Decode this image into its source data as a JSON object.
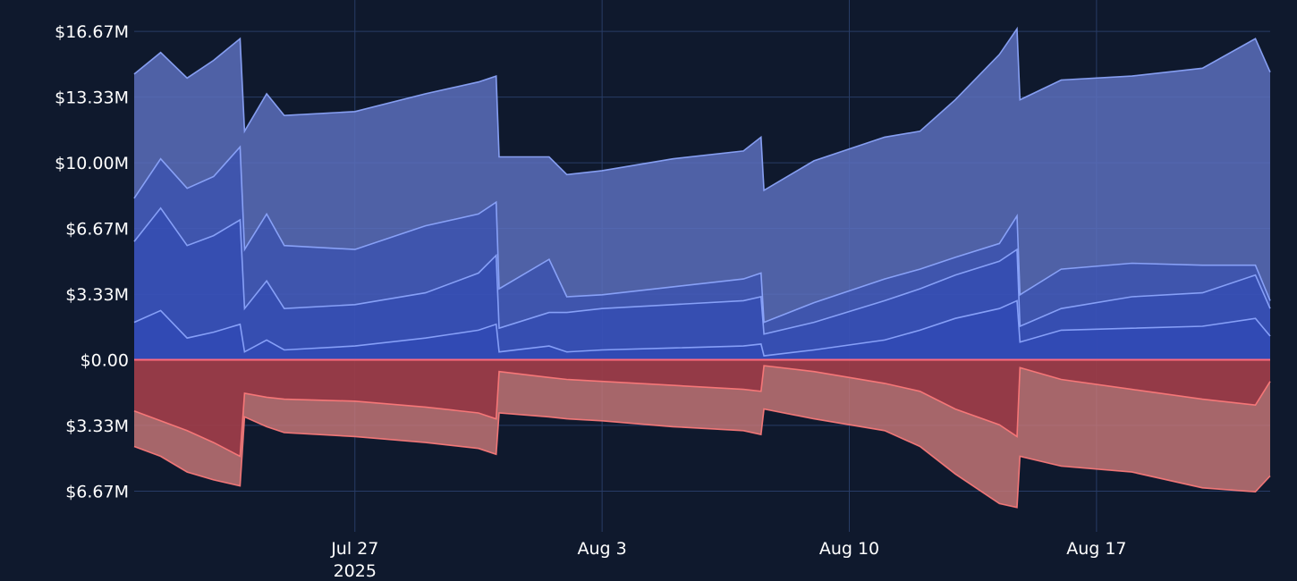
{
  "chart_data": {
    "type": "area",
    "title": "",
    "xlabel": "",
    "ylabel": "",
    "x_range": [
      "2025-07-20T18:00",
      "2025-08-21T22:00"
    ],
    "ylim": [
      -7.6,
      16.9
    ],
    "grid": true,
    "legend": "none",
    "y_ticks": [
      {
        "value": 16.67,
        "label": "$16.67M"
      },
      {
        "value": 13.33,
        "label": "$13.33M"
      },
      {
        "value": 10.0,
        "label": "$10.00M"
      },
      {
        "value": 6.67,
        "label": "$6.67M"
      },
      {
        "value": 3.33,
        "label": "$3.33M"
      },
      {
        "value": 0,
        "label": "$0.00"
      },
      {
        "value": -3.33,
        "label": "$3.33M"
      },
      {
        "value": -6.67,
        "label": "$6.67M"
      }
    ],
    "x_ticks": [
      {
        "date": "2025-07-27",
        "label": "Jul 27",
        "sublabel": "2025"
      },
      {
        "date": "2025-08-03",
        "label": "Aug 3",
        "sublabel": ""
      },
      {
        "date": "2025-08-10",
        "label": "Aug 10",
        "sublabel": ""
      },
      {
        "date": "2025-08-17",
        "label": "Aug 17",
        "sublabel": ""
      }
    ],
    "colors": {
      "positive_line": "#8fa8ff",
      "positive_fill": "#5a6ebc",
      "positive_inner": "#2a46b8",
      "negative_line": "#ff7b7b",
      "negative_fill": "#c87878",
      "negative_inner": "#8e2a3a",
      "zero_line": "#ff6b7d"
    },
    "series": [
      {
        "side": "positive",
        "points": [
          [
            "2025-07-20T18:00",
            14.5
          ],
          [
            "2025-07-21T12:00",
            15.6
          ],
          [
            "2025-07-22T06:00",
            14.3
          ],
          [
            "2025-07-23T00:00",
            15.2
          ],
          [
            "2025-07-23T18:00",
            16.3
          ],
          [
            "2025-07-23T21:00",
            11.6
          ],
          [
            "2025-07-24T12:00",
            13.5
          ],
          [
            "2025-07-25T00:00",
            12.4
          ],
          [
            "2025-07-27T00:00",
            12.6
          ],
          [
            "2025-07-29T00:00",
            13.5
          ],
          [
            "2025-07-30T12:00",
            14.1
          ],
          [
            "2025-07-31T00:00",
            14.4
          ],
          [
            "2025-07-31T02:00",
            10.3
          ],
          [
            "2025-08-01T12:00",
            10.3
          ],
          [
            "2025-08-02T00:00",
            9.4
          ],
          [
            "2025-08-03T00:00",
            9.6
          ],
          [
            "2025-08-05T00:00",
            10.2
          ],
          [
            "2025-08-07T00:00",
            10.6
          ],
          [
            "2025-08-07T12:00",
            11.3
          ],
          [
            "2025-08-07T14:00",
            8.6
          ],
          [
            "2025-08-09T00:00",
            10.1
          ],
          [
            "2025-08-11T00:00",
            11.3
          ],
          [
            "2025-08-12T00:00",
            11.6
          ],
          [
            "2025-08-13T00:00",
            13.2
          ],
          [
            "2025-08-14T06:00",
            15.5
          ],
          [
            "2025-08-14T18:00",
            16.8
          ],
          [
            "2025-08-14T20:00",
            13.2
          ],
          [
            "2025-08-16T00:00",
            14.2
          ],
          [
            "2025-08-18T00:00",
            14.4
          ],
          [
            "2025-08-20T00:00",
            14.8
          ],
          [
            "2025-08-21T12:00",
            16.3
          ],
          [
            "2025-08-21T22:00",
            14.6
          ]
        ]
      },
      {
        "side": "positive",
        "points": [
          [
            "2025-07-20T18:00",
            8.2
          ],
          [
            "2025-07-21T12:00",
            10.2
          ],
          [
            "2025-07-22T06:00",
            8.7
          ],
          [
            "2025-07-23T00:00",
            9.3
          ],
          [
            "2025-07-23T18:00",
            10.8
          ],
          [
            "2025-07-23T21:00",
            5.6
          ],
          [
            "2025-07-24T12:00",
            7.4
          ],
          [
            "2025-07-25T00:00",
            5.8
          ],
          [
            "2025-07-27T00:00",
            5.6
          ],
          [
            "2025-07-29T00:00",
            6.8
          ],
          [
            "2025-07-30T12:00",
            7.4
          ],
          [
            "2025-07-31T00:00",
            8.0
          ],
          [
            "2025-07-31T02:00",
            3.6
          ],
          [
            "2025-08-01T12:00",
            5.1
          ],
          [
            "2025-08-02T00:00",
            3.2
          ],
          [
            "2025-08-03T00:00",
            3.3
          ],
          [
            "2025-08-05T00:00",
            3.7
          ],
          [
            "2025-08-07T00:00",
            4.1
          ],
          [
            "2025-08-07T12:00",
            4.4
          ],
          [
            "2025-08-07T14:00",
            1.9
          ],
          [
            "2025-08-09T00:00",
            2.9
          ],
          [
            "2025-08-11T00:00",
            4.1
          ],
          [
            "2025-08-12T00:00",
            4.6
          ],
          [
            "2025-08-13T00:00",
            5.2
          ],
          [
            "2025-08-14T06:00",
            5.9
          ],
          [
            "2025-08-14T18:00",
            7.3
          ],
          [
            "2025-08-14T20:00",
            3.3
          ],
          [
            "2025-08-16T00:00",
            4.6
          ],
          [
            "2025-08-18T00:00",
            4.9
          ],
          [
            "2025-08-20T00:00",
            4.8
          ],
          [
            "2025-08-21T12:00",
            4.8
          ],
          [
            "2025-08-21T22:00",
            3.0
          ]
        ]
      },
      {
        "side": "positive",
        "points": [
          [
            "2025-07-20T18:00",
            6.0
          ],
          [
            "2025-07-21T12:00",
            7.7
          ],
          [
            "2025-07-22T06:00",
            5.8
          ],
          [
            "2025-07-23T00:00",
            6.3
          ],
          [
            "2025-07-23T18:00",
            7.1
          ],
          [
            "2025-07-23T21:00",
            2.6
          ],
          [
            "2025-07-24T12:00",
            4.0
          ],
          [
            "2025-07-25T00:00",
            2.6
          ],
          [
            "2025-07-27T00:00",
            2.8
          ],
          [
            "2025-07-29T00:00",
            3.4
          ],
          [
            "2025-07-30T12:00",
            4.4
          ],
          [
            "2025-07-31T00:00",
            5.3
          ],
          [
            "2025-07-31T02:00",
            1.6
          ],
          [
            "2025-08-01T12:00",
            2.4
          ],
          [
            "2025-08-02T00:00",
            2.4
          ],
          [
            "2025-08-03T00:00",
            2.6
          ],
          [
            "2025-08-05T00:00",
            2.8
          ],
          [
            "2025-08-07T00:00",
            3.0
          ],
          [
            "2025-08-07T12:00",
            3.2
          ],
          [
            "2025-08-07T14:00",
            1.3
          ],
          [
            "2025-08-09T00:00",
            1.9
          ],
          [
            "2025-08-11T00:00",
            3.0
          ],
          [
            "2025-08-12T00:00",
            3.6
          ],
          [
            "2025-08-13T00:00",
            4.3
          ],
          [
            "2025-08-14T06:00",
            5.0
          ],
          [
            "2025-08-14T18:00",
            5.6
          ],
          [
            "2025-08-14T20:00",
            1.7
          ],
          [
            "2025-08-16T00:00",
            2.6
          ],
          [
            "2025-08-18T00:00",
            3.2
          ],
          [
            "2025-08-20T00:00",
            3.4
          ],
          [
            "2025-08-21T12:00",
            4.3
          ],
          [
            "2025-08-21T22:00",
            2.6
          ]
        ]
      },
      {
        "side": "positive",
        "points": [
          [
            "2025-07-20T18:00",
            1.9
          ],
          [
            "2025-07-21T12:00",
            2.5
          ],
          [
            "2025-07-22T06:00",
            1.1
          ],
          [
            "2025-07-23T00:00",
            1.4
          ],
          [
            "2025-07-23T18:00",
            1.8
          ],
          [
            "2025-07-23T21:00",
            0.4
          ],
          [
            "2025-07-24T12:00",
            1.0
          ],
          [
            "2025-07-25T00:00",
            0.5
          ],
          [
            "2025-07-27T00:00",
            0.7
          ],
          [
            "2025-07-29T00:00",
            1.1
          ],
          [
            "2025-07-30T12:00",
            1.5
          ],
          [
            "2025-07-31T00:00",
            1.8
          ],
          [
            "2025-07-31T02:00",
            0.4
          ],
          [
            "2025-08-01T12:00",
            0.7
          ],
          [
            "2025-08-02T00:00",
            0.4
          ],
          [
            "2025-08-03T00:00",
            0.5
          ],
          [
            "2025-08-05T00:00",
            0.6
          ],
          [
            "2025-08-07T00:00",
            0.7
          ],
          [
            "2025-08-07T12:00",
            0.8
          ],
          [
            "2025-08-07T14:00",
            0.2
          ],
          [
            "2025-08-09T00:00",
            0.5
          ],
          [
            "2025-08-11T00:00",
            1.0
          ],
          [
            "2025-08-12T00:00",
            1.5
          ],
          [
            "2025-08-13T00:00",
            2.1
          ],
          [
            "2025-08-14T06:00",
            2.6
          ],
          [
            "2025-08-14T18:00",
            3.0
          ],
          [
            "2025-08-14T20:00",
            0.9
          ],
          [
            "2025-08-16T00:00",
            1.5
          ],
          [
            "2025-08-18T00:00",
            1.6
          ],
          [
            "2025-08-20T00:00",
            1.7
          ],
          [
            "2025-08-21T12:00",
            2.1
          ],
          [
            "2025-08-21T22:00",
            1.2
          ]
        ]
      },
      {
        "side": "negative",
        "points": [
          [
            "2025-07-20T18:00",
            -4.4
          ],
          [
            "2025-07-21T12:00",
            -4.9
          ],
          [
            "2025-07-22T06:00",
            -5.7
          ],
          [
            "2025-07-23T00:00",
            -6.1
          ],
          [
            "2025-07-23T18:00",
            -6.4
          ],
          [
            "2025-07-23T21:00",
            -2.9
          ],
          [
            "2025-07-24T12:00",
            -3.4
          ],
          [
            "2025-07-25T00:00",
            -3.7
          ],
          [
            "2025-07-27T00:00",
            -3.9
          ],
          [
            "2025-07-29T00:00",
            -4.2
          ],
          [
            "2025-07-30T12:00",
            -4.5
          ],
          [
            "2025-07-31T00:00",
            -4.8
          ],
          [
            "2025-07-31T02:00",
            -2.7
          ],
          [
            "2025-08-01T12:00",
            -2.9
          ],
          [
            "2025-08-02T00:00",
            -3.0
          ],
          [
            "2025-08-03T00:00",
            -3.1
          ],
          [
            "2025-08-05T00:00",
            -3.4
          ],
          [
            "2025-08-07T00:00",
            -3.6
          ],
          [
            "2025-08-07T12:00",
            -3.8
          ],
          [
            "2025-08-07T14:00",
            -2.5
          ],
          [
            "2025-08-09T00:00",
            -3.0
          ],
          [
            "2025-08-11T00:00",
            -3.6
          ],
          [
            "2025-08-12T00:00",
            -4.4
          ],
          [
            "2025-08-13T00:00",
            -5.8
          ],
          [
            "2025-08-14T06:00",
            -7.3
          ],
          [
            "2025-08-14T18:00",
            -7.5
          ],
          [
            "2025-08-14T20:00",
            -4.9
          ],
          [
            "2025-08-16T00:00",
            -5.4
          ],
          [
            "2025-08-18T00:00",
            -5.7
          ],
          [
            "2025-08-20T00:00",
            -6.5
          ],
          [
            "2025-08-21T12:00",
            -6.7
          ],
          [
            "2025-08-21T22:00",
            -5.9
          ]
        ]
      },
      {
        "side": "negative",
        "points": [
          [
            "2025-07-20T18:00",
            -2.6
          ],
          [
            "2025-07-21T12:00",
            -3.1
          ],
          [
            "2025-07-22T06:00",
            -3.6
          ],
          [
            "2025-07-23T00:00",
            -4.2
          ],
          [
            "2025-07-23T18:00",
            -4.9
          ],
          [
            "2025-07-23T21:00",
            -1.7
          ],
          [
            "2025-07-24T12:00",
            -1.9
          ],
          [
            "2025-07-25T00:00",
            -2.0
          ],
          [
            "2025-07-27T00:00",
            -2.1
          ],
          [
            "2025-07-29T00:00",
            -2.4
          ],
          [
            "2025-07-30T12:00",
            -2.7
          ],
          [
            "2025-07-31T00:00",
            -3.0
          ],
          [
            "2025-07-31T02:00",
            -0.6
          ],
          [
            "2025-08-01T12:00",
            -0.9
          ],
          [
            "2025-08-02T00:00",
            -1.0
          ],
          [
            "2025-08-03T00:00",
            -1.1
          ],
          [
            "2025-08-05T00:00",
            -1.3
          ],
          [
            "2025-08-07T00:00",
            -1.5
          ],
          [
            "2025-08-07T12:00",
            -1.6
          ],
          [
            "2025-08-07T14:00",
            -0.3
          ],
          [
            "2025-08-09T00:00",
            -0.6
          ],
          [
            "2025-08-11T00:00",
            -1.2
          ],
          [
            "2025-08-12T00:00",
            -1.6
          ],
          [
            "2025-08-13T00:00",
            -2.5
          ],
          [
            "2025-08-14T06:00",
            -3.3
          ],
          [
            "2025-08-14T18:00",
            -3.9
          ],
          [
            "2025-08-14T20:00",
            -0.4
          ],
          [
            "2025-08-16T00:00",
            -1.0
          ],
          [
            "2025-08-18T00:00",
            -1.5
          ],
          [
            "2025-08-20T00:00",
            -2.0
          ],
          [
            "2025-08-21T12:00",
            -2.3
          ],
          [
            "2025-08-21T22:00",
            -1.1
          ]
        ]
      }
    ]
  }
}
